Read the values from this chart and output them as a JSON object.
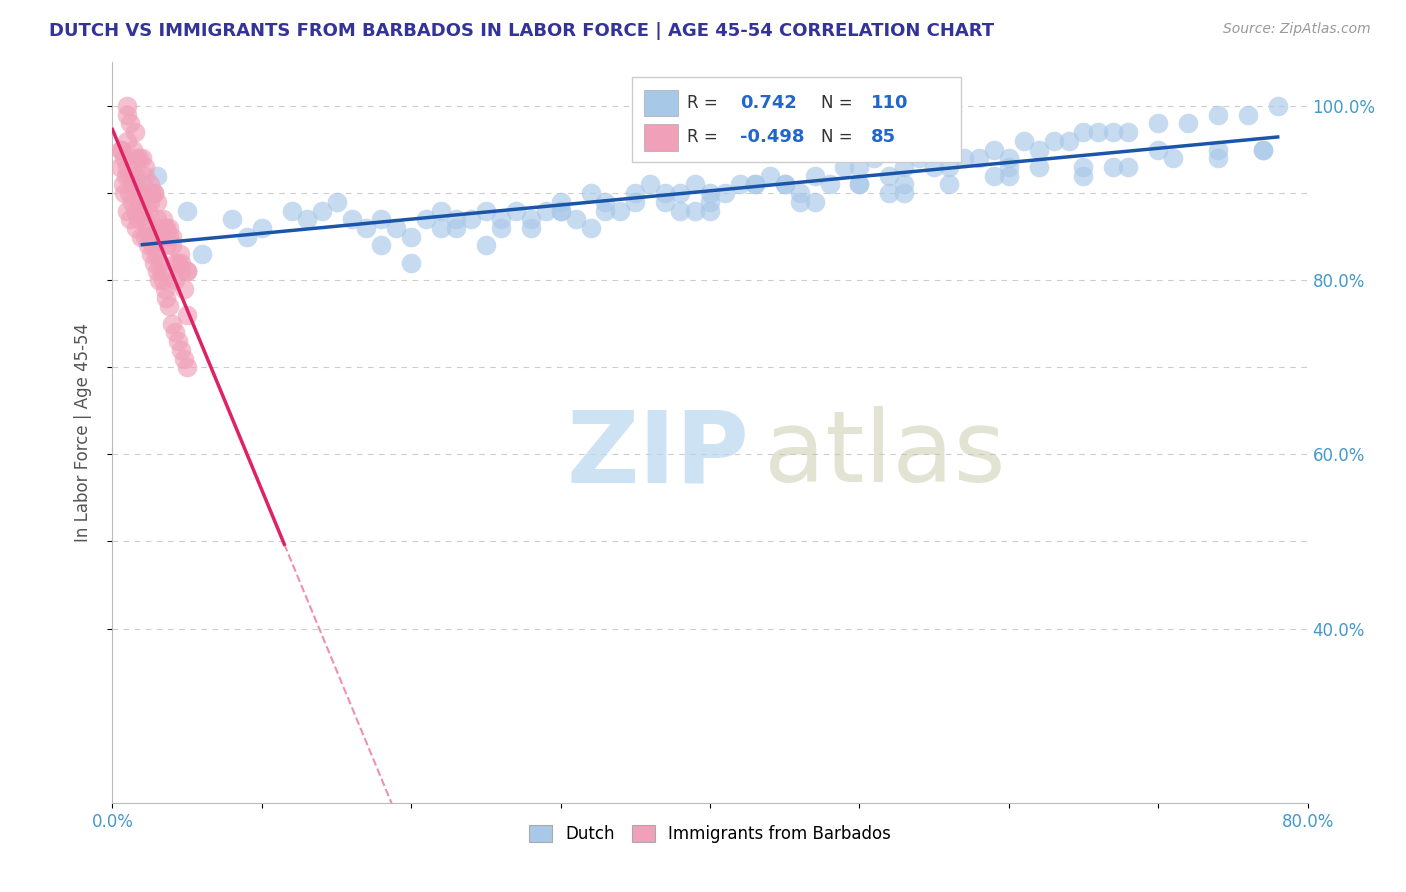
{
  "title": "DUTCH VS IMMIGRANTS FROM BARBADOS IN LABOR FORCE | AGE 45-54 CORRELATION CHART",
  "source": "Source: ZipAtlas.com",
  "ylabel": "In Labor Force | Age 45-54",
  "xlim": [
    0.0,
    0.8
  ],
  "ylim": [
    0.2,
    1.05
  ],
  "r_dutch": 0.742,
  "n_dutch": 110,
  "r_immigrants": -0.498,
  "n_immigrants": 85,
  "dutch_color": "#a8c8e8",
  "dutch_line_color": "#1a55aa",
  "immigrants_color": "#f0a0b8",
  "immigrants_line_color": "#dd2266",
  "watermark_zip": "ZIP",
  "watermark_atlas": "atlas",
  "legend_dutch_label": "Dutch",
  "legend_immigrants_label": "Immigrants from Barbados",
  "dutch_scatter_x": [
    0.02,
    0.03,
    0.05,
    0.06,
    0.08,
    0.09,
    0.1,
    0.12,
    0.13,
    0.14,
    0.15,
    0.16,
    0.17,
    0.18,
    0.19,
    0.2,
    0.21,
    0.22,
    0.23,
    0.24,
    0.25,
    0.26,
    0.27,
    0.28,
    0.29,
    0.3,
    0.31,
    0.32,
    0.33,
    0.34,
    0.35,
    0.36,
    0.37,
    0.38,
    0.39,
    0.4,
    0.41,
    0.42,
    0.43,
    0.44,
    0.45,
    0.46,
    0.47,
    0.48,
    0.49,
    0.5,
    0.51,
    0.52,
    0.53,
    0.54,
    0.55,
    0.56,
    0.57,
    0.58,
    0.59,
    0.6,
    0.61,
    0.62,
    0.63,
    0.64,
    0.65,
    0.66,
    0.67,
    0.68,
    0.7,
    0.72,
    0.74,
    0.76,
    0.78,
    0.18,
    0.22,
    0.28,
    0.3,
    0.33,
    0.35,
    0.37,
    0.4,
    0.43,
    0.45,
    0.47,
    0.5,
    0.53,
    0.56,
    0.59,
    0.62,
    0.65,
    0.68,
    0.71,
    0.74,
    0.77,
    0.2,
    0.25,
    0.32,
    0.39,
    0.46,
    0.53,
    0.6,
    0.67,
    0.74,
    0.23,
    0.3,
    0.4,
    0.5,
    0.6,
    0.7,
    0.26,
    0.38,
    0.52,
    0.65,
    0.77
  ],
  "dutch_scatter_y": [
    0.91,
    0.92,
    0.88,
    0.83,
    0.87,
    0.85,
    0.86,
    0.88,
    0.87,
    0.88,
    0.89,
    0.87,
    0.86,
    0.87,
    0.86,
    0.85,
    0.87,
    0.88,
    0.86,
    0.87,
    0.88,
    0.87,
    0.88,
    0.86,
    0.88,
    0.89,
    0.87,
    0.9,
    0.89,
    0.88,
    0.9,
    0.91,
    0.9,
    0.9,
    0.91,
    0.88,
    0.9,
    0.91,
    0.91,
    0.92,
    0.91,
    0.9,
    0.92,
    0.91,
    0.93,
    0.93,
    0.94,
    0.92,
    0.93,
    0.94,
    0.93,
    0.93,
    0.94,
    0.94,
    0.95,
    0.94,
    0.96,
    0.95,
    0.96,
    0.96,
    0.97,
    0.97,
    0.97,
    0.97,
    0.98,
    0.98,
    0.99,
    0.99,
    1.0,
    0.84,
    0.86,
    0.87,
    0.88,
    0.88,
    0.89,
    0.89,
    0.9,
    0.91,
    0.91,
    0.89,
    0.91,
    0.9,
    0.91,
    0.92,
    0.93,
    0.92,
    0.93,
    0.94,
    0.94,
    0.95,
    0.82,
    0.84,
    0.86,
    0.88,
    0.89,
    0.91,
    0.92,
    0.93,
    0.95,
    0.87,
    0.88,
    0.89,
    0.91,
    0.93,
    0.95,
    0.86,
    0.88,
    0.9,
    0.93,
    0.95
  ],
  "immigrants_scatter_x": [
    0.005,
    0.006,
    0.007,
    0.008,
    0.009,
    0.01,
    0.011,
    0.012,
    0.013,
    0.014,
    0.015,
    0.016,
    0.017,
    0.018,
    0.019,
    0.02,
    0.021,
    0.022,
    0.023,
    0.024,
    0.025,
    0.026,
    0.027,
    0.028,
    0.029,
    0.03,
    0.031,
    0.032,
    0.033,
    0.034,
    0.035,
    0.036,
    0.038,
    0.04,
    0.042,
    0.044,
    0.046,
    0.048,
    0.05,
    0.006,
    0.01,
    0.015,
    0.02,
    0.025,
    0.03,
    0.035,
    0.04,
    0.045,
    0.05,
    0.008,
    0.012,
    0.018,
    0.024,
    0.03,
    0.036,
    0.042,
    0.048,
    0.01,
    0.016,
    0.022,
    0.028,
    0.034,
    0.04,
    0.046,
    0.015,
    0.022,
    0.03,
    0.038,
    0.046,
    0.012,
    0.02,
    0.028,
    0.036,
    0.044,
    0.01,
    0.018,
    0.026,
    0.034,
    0.042,
    0.05,
    0.014,
    0.025,
    0.038,
    0.05,
    0.01
  ],
  "immigrants_scatter_y": [
    0.93,
    0.95,
    0.91,
    0.9,
    0.92,
    0.88,
    0.9,
    0.87,
    0.89,
    0.91,
    0.88,
    0.86,
    0.87,
    0.89,
    0.85,
    0.88,
    0.87,
    0.85,
    0.86,
    0.84,
    0.85,
    0.83,
    0.84,
    0.82,
    0.83,
    0.81,
    0.8,
    0.82,
    0.81,
    0.8,
    0.79,
    0.78,
    0.77,
    0.75,
    0.74,
    0.73,
    0.72,
    0.71,
    0.7,
    0.95,
    0.93,
    0.92,
    0.9,
    0.89,
    0.87,
    0.86,
    0.84,
    0.83,
    0.81,
    0.94,
    0.92,
    0.9,
    0.88,
    0.86,
    0.84,
    0.82,
    0.79,
    0.96,
    0.94,
    0.92,
    0.9,
    0.87,
    0.85,
    0.82,
    0.97,
    0.93,
    0.89,
    0.85,
    0.81,
    0.98,
    0.94,
    0.9,
    0.86,
    0.82,
    0.99,
    0.94,
    0.9,
    0.85,
    0.8,
    0.76,
    0.95,
    0.91,
    0.86,
    0.81,
    1.0
  ]
}
